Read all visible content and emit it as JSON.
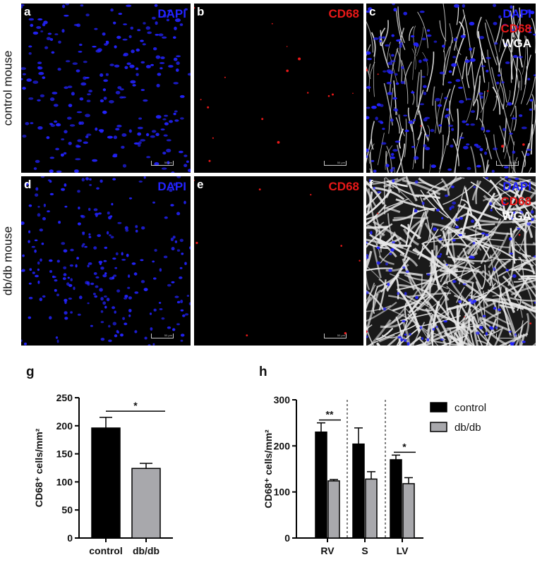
{
  "micrographs": {
    "rows": [
      "control mouse",
      "db/db mouse"
    ],
    "panels": [
      {
        "letter": "a",
        "stains": [
          "DAPI"
        ]
      },
      {
        "letter": "b",
        "stains": [
          "CD68"
        ]
      },
      {
        "letter": "c",
        "stains": [
          "DAPI",
          "CD68",
          "WGA"
        ]
      },
      {
        "letter": "d",
        "stains": [
          "DAPI"
        ]
      },
      {
        "letter": "e",
        "stains": [
          "CD68"
        ]
      },
      {
        "letter": "f",
        "stains": [
          "DAPI",
          "CD68",
          "WGA"
        ]
      }
    ],
    "stain_colors": {
      "DAPI": "#2323ff",
      "CD68": "#e81818",
      "WGA": "#ffffff"
    },
    "scale_text": "50 µm"
  },
  "chart_data": [
    {
      "panel": "g",
      "type": "bar",
      "categories": [
        "control",
        "db/db"
      ],
      "series": [
        {
          "values": [
            196,
            124
          ],
          "errors": [
            19,
            9
          ]
        }
      ],
      "bar_colors": [
        "#000000",
        "#a8a8ac"
      ],
      "ylabel": "CD68⁺ cells/mm²",
      "ylim": [
        0,
        250
      ],
      "yticks": [
        0,
        50,
        100,
        150,
        200,
        250
      ],
      "significance": [
        {
          "from": 0,
          "to": 1,
          "label": "*"
        }
      ]
    },
    {
      "panel": "h",
      "type": "bar",
      "categories": [
        "RV",
        "S",
        "LV"
      ],
      "series": [
        {
          "name": "control",
          "values": [
            230,
            204,
            170
          ],
          "errors": [
            20,
            35,
            10
          ],
          "color": "#000000"
        },
        {
          "name": "db/db",
          "values": [
            124,
            128,
            118
          ],
          "errors": [
            3,
            16,
            13
          ],
          "color": "#a8a8ac"
        }
      ],
      "ylabel": "CD68⁺ cells/mm²",
      "ylim": [
        0,
        300
      ],
      "yticks": [
        0,
        100,
        200,
        300
      ],
      "legend": "top-right",
      "significance": [
        {
          "group": 0,
          "label": "**"
        },
        {
          "group": 2,
          "label": "*"
        }
      ]
    }
  ]
}
